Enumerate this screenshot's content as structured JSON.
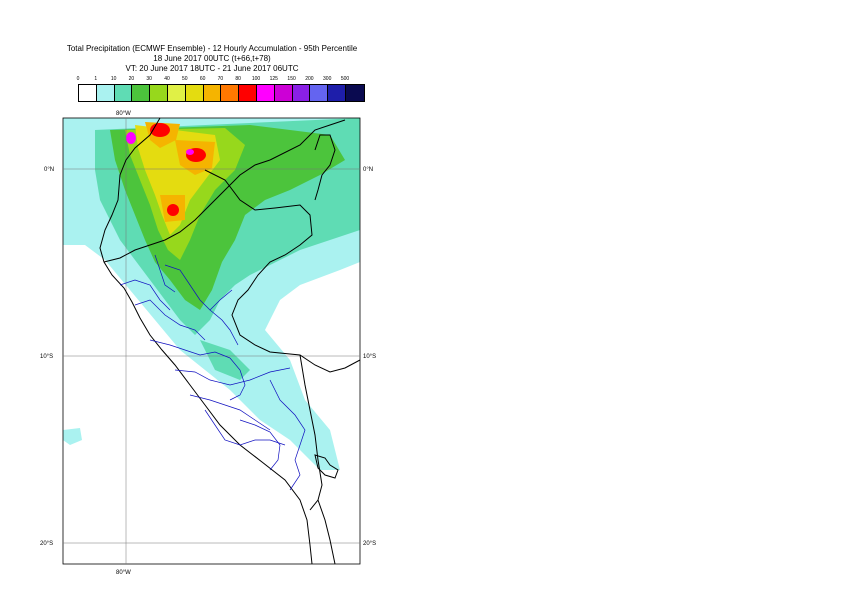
{
  "title": {
    "line1": "Total Precipitation (ECMWF Ensemble) - 12 Hourly Accumulation - 95th Percentile",
    "line2": "18 June 2017 00UTC (t+66,t+78)",
    "line3": "VT: 20 June 2017 18UTC - 21 June 2017 06UTC"
  },
  "legend": {
    "labels": [
      "0",
      "1",
      "10",
      "20",
      "30",
      "40",
      "50",
      "60",
      "70",
      "80",
      "100",
      "125",
      "150",
      "200",
      "300",
      "500"
    ],
    "colors": [
      "#ffffff",
      "#aaf2f0",
      "#5fdcb4",
      "#4cc43c",
      "#97d81c",
      "#e0f046",
      "#e4dc10",
      "#f5b400",
      "#ff7800",
      "#ff0000",
      "#ff00ff",
      "#cc00d6",
      "#8a20e6",
      "#6464f0",
      "#1e1eaa",
      "#0a0a50"
    ]
  },
  "map": {
    "lat_labels": [
      {
        "text": "0°N",
        "lat": 0
      },
      {
        "text": "10°S",
        "lat": -10
      },
      {
        "text": "20°S",
        "lat": -20
      }
    ],
    "lon_labels": [
      {
        "text": "80°W",
        "lon": -80
      }
    ]
  }
}
